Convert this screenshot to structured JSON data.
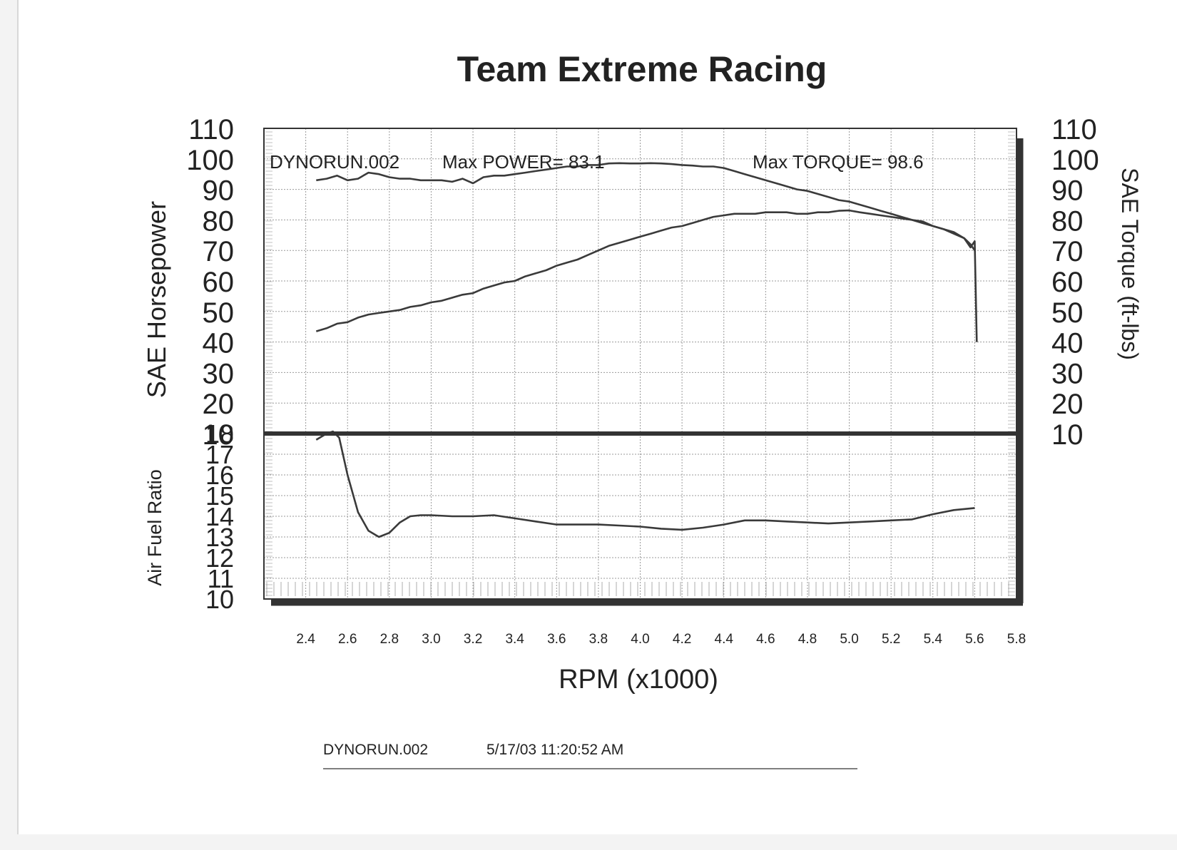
{
  "page": {
    "footer_run": "DYNORUN.002",
    "footer_timestamp": "5/17/03 11:20:52 AM"
  },
  "chart_data": {
    "type": "line",
    "title": "Team Extreme Racing",
    "xlabel": "RPM (x1000)",
    "xlim": [
      2.2,
      5.8
    ],
    "x_ticks": [
      "2.4",
      "2.6",
      "2.8",
      "3.0",
      "3.2",
      "3.4",
      "3.6",
      "3.8",
      "4.0",
      "4.2",
      "4.4",
      "4.6",
      "4.8",
      "5.0",
      "5.2",
      "5.4",
      "5.6",
      "5.8"
    ],
    "grid": true,
    "top_panel": {
      "ylabel_left": "SAE Horsepower",
      "ylabel_right": "SAE Torque (ft-lbs)",
      "ylim": [
        10,
        110
      ],
      "y_ticks_left": [
        "110",
        "100",
        "90",
        "80",
        "70",
        "60",
        "50",
        "40",
        "30",
        "20",
        "10"
      ],
      "y_ticks_right": [
        "110",
        "100",
        "90",
        "80",
        "70",
        "60",
        "50",
        "40",
        "30",
        "20",
        "10"
      ],
      "annotations": {
        "run": "DYNORUN.002",
        "max_power": "Max POWER= 83.1",
        "max_torque": "Max TORQUE= 98.6"
      },
      "series": [
        {
          "key": "torque",
          "x": [
            2.45,
            2.5,
            2.55,
            2.6,
            2.65,
            2.7,
            2.75,
            2.8,
            2.85,
            2.9,
            2.95,
            3.0,
            3.05,
            3.1,
            3.15,
            3.2,
            3.25,
            3.3,
            3.35,
            3.4,
            3.45,
            3.5,
            3.55,
            3.6,
            3.65,
            3.7,
            3.75,
            3.8,
            3.85,
            3.9,
            3.95,
            4.0,
            4.05,
            4.1,
            4.15,
            4.2,
            4.25,
            4.3,
            4.35,
            4.4,
            4.45,
            4.5,
            4.55,
            4.6,
            4.65,
            4.7,
            4.75,
            4.8,
            4.85,
            4.9,
            4.95,
            5.0,
            5.05,
            5.1,
            5.15,
            5.2,
            5.25,
            5.3,
            5.35,
            5.4,
            5.45,
            5.5,
            5.55,
            5.58,
            5.6,
            5.61
          ],
          "values": [
            93,
            93.5,
            94.5,
            93,
            93.5,
            95.5,
            95,
            94,
            93.5,
            93.5,
            93,
            93,
            93,
            92.5,
            93.5,
            92,
            94,
            94.5,
            94.5,
            95,
            95.5,
            96,
            96.5,
            97,
            97.5,
            97.5,
            98,
            98,
            98.5,
            98.6,
            98.5,
            98.5,
            98.6,
            98.5,
            98.3,
            98,
            97.8,
            97.5,
            97.5,
            97,
            96,
            95,
            94,
            93,
            92,
            91,
            90,
            89.5,
            88.5,
            87.5,
            86.5,
            86,
            85,
            84,
            83,
            82,
            81,
            80,
            79.5,
            78,
            77,
            76,
            74,
            71,
            73,
            40
          ]
        },
        {
          "key": "power",
          "x": [
            2.45,
            2.5,
            2.55,
            2.6,
            2.65,
            2.7,
            2.75,
            2.8,
            2.85,
            2.9,
            2.95,
            3.0,
            3.05,
            3.1,
            3.15,
            3.2,
            3.25,
            3.3,
            3.35,
            3.4,
            3.45,
            3.5,
            3.55,
            3.6,
            3.65,
            3.7,
            3.75,
            3.8,
            3.85,
            3.9,
            3.95,
            4.0,
            4.05,
            4.1,
            4.15,
            4.2,
            4.25,
            4.3,
            4.35,
            4.4,
            4.45,
            4.5,
            4.55,
            4.6,
            4.65,
            4.7,
            4.75,
            4.8,
            4.85,
            4.9,
            4.95,
            5.0,
            5.05,
            5.1,
            5.15,
            5.2,
            5.25,
            5.3,
            5.35,
            5.4,
            5.45,
            5.5,
            5.55,
            5.58,
            5.6
          ],
          "values": [
            43.5,
            44.5,
            46,
            46.5,
            48,
            49,
            49.5,
            50,
            50.5,
            51.5,
            52,
            53,
            53.5,
            54.5,
            55.5,
            56,
            57.5,
            58.5,
            59.5,
            60,
            61.5,
            62.5,
            63.5,
            65,
            66,
            67,
            68.5,
            70,
            71.5,
            72.5,
            73.5,
            74.5,
            75.5,
            76.5,
            77.5,
            78,
            79,
            80,
            81,
            81.5,
            82,
            82,
            82,
            82.5,
            82.5,
            82.5,
            82,
            82,
            82.5,
            82.5,
            83,
            83.1,
            82.5,
            82,
            81.5,
            81,
            80.5,
            80,
            79,
            78,
            77,
            75.5,
            74,
            72,
            70
          ]
        }
      ]
    },
    "bottom_panel": {
      "ylabel": "Air Fuel Ratio",
      "ylim": [
        10,
        18
      ],
      "y_ticks": [
        "18",
        "17",
        "16",
        "15",
        "14",
        "13",
        "12",
        "11",
        "10"
      ],
      "series": [
        {
          "key": "afr",
          "x": [
            2.45,
            2.5,
            2.53,
            2.56,
            2.6,
            2.65,
            2.7,
            2.75,
            2.8,
            2.85,
            2.9,
            2.95,
            3.0,
            3.1,
            3.2,
            3.3,
            3.4,
            3.5,
            3.6,
            3.7,
            3.8,
            3.9,
            4.0,
            4.1,
            4.2,
            4.3,
            4.4,
            4.5,
            4.6,
            4.7,
            4.8,
            4.9,
            5.0,
            5.1,
            5.2,
            5.3,
            5.4,
            5.5,
            5.6
          ],
          "values": [
            17.7,
            18.0,
            18.1,
            17.8,
            16.0,
            14.2,
            13.3,
            13.0,
            13.2,
            13.7,
            14.0,
            14.05,
            14.05,
            14.0,
            14.0,
            14.05,
            13.9,
            13.75,
            13.6,
            13.6,
            13.6,
            13.55,
            13.5,
            13.4,
            13.35,
            13.45,
            13.6,
            13.8,
            13.8,
            13.75,
            13.7,
            13.65,
            13.7,
            13.75,
            13.8,
            13.85,
            14.1,
            14.3,
            14.4
          ]
        }
      ]
    }
  }
}
